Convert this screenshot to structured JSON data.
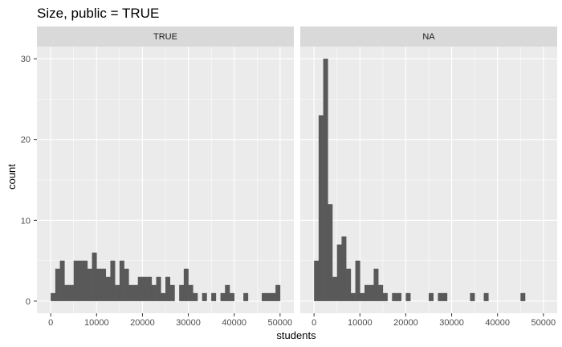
{
  "chart_data": {
    "type": "bar",
    "title": "Size, public = TRUE",
    "xlabel": "students",
    "ylabel": "count",
    "xlim": [
      -3000,
      53000
    ],
    "ylim": [
      -1.5,
      31.5
    ],
    "xticks": [
      0,
      10000,
      20000,
      30000,
      40000,
      50000
    ],
    "xtick_labels": [
      "0",
      "10000",
      "20000",
      "30000",
      "40000",
      "50000"
    ],
    "yticks": [
      0,
      10,
      20,
      30
    ],
    "ytick_labels": [
      "0",
      "10",
      "20",
      "30"
    ],
    "bin_width": 1000,
    "bin_start": 0,
    "colors": {
      "bar": "#595959",
      "panel": "#ebebeb",
      "strip": "#d9d9d9",
      "grid": "#ffffff"
    },
    "panels": [
      {
        "label": "TRUE",
        "counts": [
          1,
          4,
          5,
          2,
          2,
          5,
          5,
          5,
          4,
          6,
          4,
          4,
          3,
          5,
          2,
          5,
          4,
          2,
          2,
          3,
          3,
          3,
          2,
          3,
          1,
          3,
          2,
          0,
          2,
          4,
          2,
          1,
          0,
          1,
          0,
          1,
          0,
          1,
          2,
          1,
          0,
          0,
          1,
          0,
          0,
          0,
          1,
          1,
          1,
          2
        ]
      },
      {
        "label": "NA",
        "counts": [
          5,
          23,
          30,
          12,
          3,
          7,
          8,
          4,
          1,
          5,
          1,
          2,
          2,
          4,
          2,
          1,
          0,
          1,
          1,
          0,
          1,
          0,
          0,
          0,
          0,
          1,
          0,
          1,
          1,
          0,
          0,
          0,
          0,
          0,
          1,
          0,
          0,
          1,
          0,
          0,
          0,
          0,
          0,
          0,
          0,
          1
        ]
      }
    ]
  }
}
